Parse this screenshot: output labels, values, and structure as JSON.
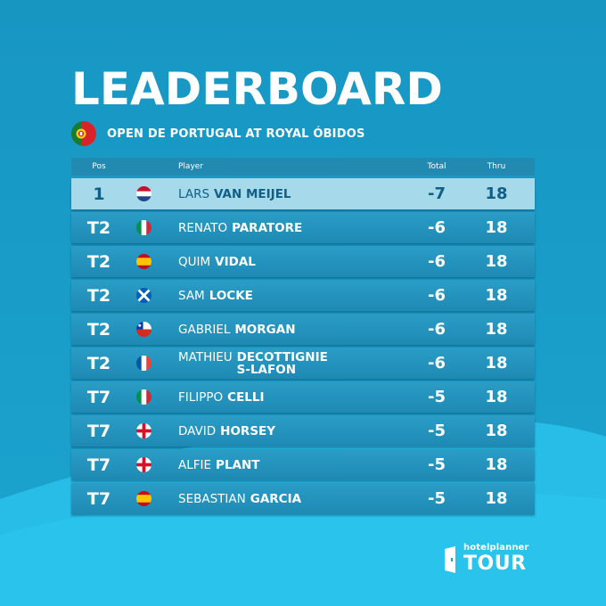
{
  "title": "LEADERBOARD",
  "event": {
    "name": "OPEN DE PORTUGAL AT ROYAL ÓBIDOS",
    "flag": "portugal-flag-icon"
  },
  "columns": {
    "pos": "Pos",
    "player": "Player",
    "total": "Total",
    "thru": "Thru"
  },
  "rows": [
    {
      "pos": "1",
      "first": "LARS",
      "last": "VAN MEIJEL",
      "total": "-7",
      "thru": "18",
      "flag": "netherlands"
    },
    {
      "pos": "T2",
      "first": "RENATO",
      "last": "PARATORE",
      "total": "-6",
      "thru": "18",
      "flag": "italy"
    },
    {
      "pos": "T2",
      "first": "QUIM",
      "last": "VIDAL",
      "total": "-6",
      "thru": "18",
      "flag": "spain"
    },
    {
      "pos": "T2",
      "first": "SAM",
      "last": "LOCKE",
      "total": "-6",
      "thru": "18",
      "flag": "scotland"
    },
    {
      "pos": "T2",
      "first": "GABRIEL",
      "last": "MORGAN",
      "total": "-6",
      "thru": "18",
      "flag": "chile"
    },
    {
      "pos": "T2",
      "first": "MATHIEU",
      "last": "DECOTTIGNIES-LAFON",
      "total": "-6",
      "thru": "18",
      "flag": "france"
    },
    {
      "pos": "T7",
      "first": "FILIPPO",
      "last": "CELLI",
      "total": "-5",
      "thru": "18",
      "flag": "italy"
    },
    {
      "pos": "T7",
      "first": "DAVID",
      "last": "HORSEY",
      "total": "-5",
      "thru": "18",
      "flag": "england"
    },
    {
      "pos": "T7",
      "first": "ALFIE",
      "last": "PLANT",
      "total": "-5",
      "thru": "18",
      "flag": "england"
    },
    {
      "pos": "T7",
      "first": "SEBASTIAN",
      "last": "GARCIA",
      "total": "-5",
      "thru": "18",
      "flag": "spain"
    }
  ],
  "logo": {
    "small": "hotelplanner",
    "big": "TOUR",
    "icon": "door-icon"
  },
  "colors": {
    "background": "#1a9ec8",
    "row": "#2294bd",
    "leader_row": "#a6d9ea",
    "leader_text": "#0f5f87",
    "header": "#2289b1"
  }
}
